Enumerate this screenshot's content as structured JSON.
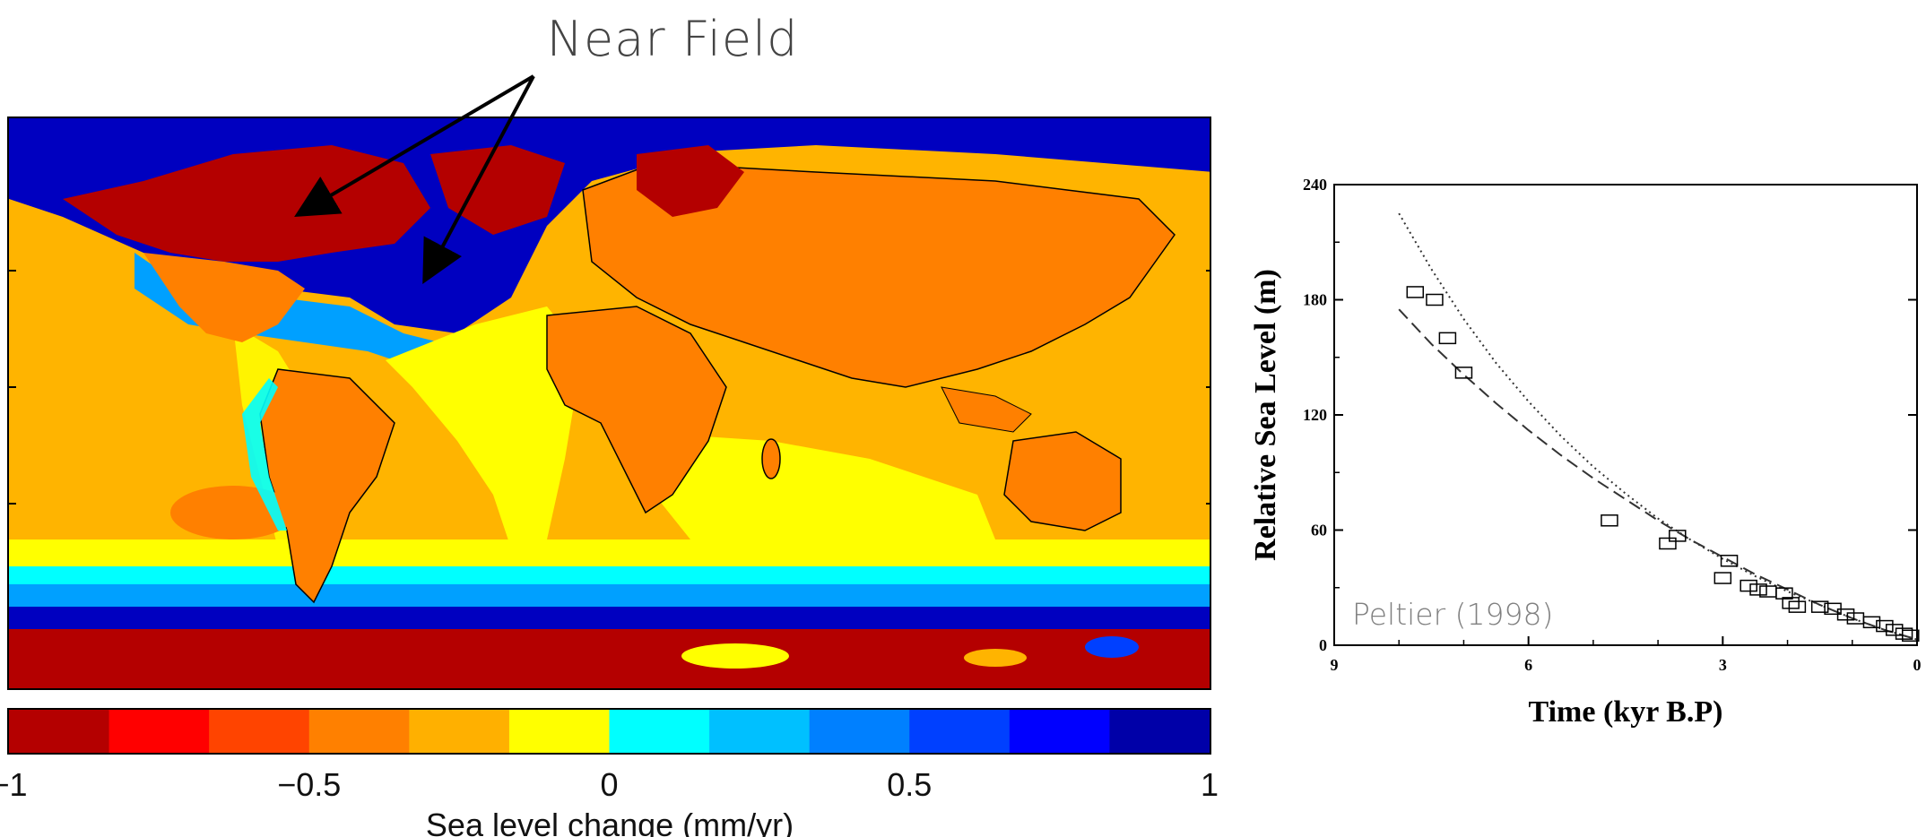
{
  "annotation": {
    "near_field": "Near Field"
  },
  "colorbar": {
    "range": [
      -1,
      1
    ],
    "ticks": [
      {
        "value": -1,
        "label": "−1"
      },
      {
        "value": -0.5,
        "label": "−0.5"
      },
      {
        "value": 0,
        "label": "0"
      },
      {
        "value": 0.5,
        "label": "0.5"
      },
      {
        "value": 1,
        "label": "1"
      }
    ],
    "label": "Sea level change (mm/yr)",
    "colors": [
      "#b40000",
      "#ff0000",
      "#ff4400",
      "#ff8000",
      "#ffb000",
      "#ffff00",
      "#00ffff",
      "#00c0ff",
      "#0080ff",
      "#0040ff",
      "#0000ff",
      "#0000a8"
    ]
  },
  "map": {
    "ocean_color": "#ffb400",
    "ice_color": "#b40000",
    "coast_color": "#0040ff"
  },
  "chart_data": {
    "type": "scatter",
    "ylabel": "Relative Sea Level (m)",
    "xlabel": "Time (kyr B.P)",
    "xlim": [
      9,
      0
    ],
    "ylim": [
      0,
      240
    ],
    "xticks": [
      9,
      6,
      3,
      0
    ],
    "yticks": [
      0,
      60,
      120,
      180,
      240
    ],
    "annotation": "Peltier (1998)",
    "series": [
      {
        "style": "dotted",
        "points": [
          [
            8.0,
            225
          ],
          [
            7.5,
            196
          ],
          [
            7.0,
            170
          ],
          [
            6.5,
            147
          ],
          [
            6.0,
            127
          ],
          [
            5.5,
            109
          ],
          [
            5.0,
            93
          ],
          [
            4.5,
            79
          ],
          [
            4.0,
            66
          ],
          [
            3.5,
            55
          ],
          [
            3.0,
            45
          ],
          [
            2.5,
            36
          ],
          [
            2.0,
            28
          ],
          [
            1.5,
            21
          ],
          [
            1.0,
            14
          ],
          [
            0.5,
            8
          ],
          [
            0.0,
            3
          ]
        ]
      },
      {
        "style": "dashed",
        "points": [
          [
            8.0,
            175
          ],
          [
            7.5,
            157
          ],
          [
            7.0,
            141
          ],
          [
            6.5,
            126
          ],
          [
            6.0,
            112
          ],
          [
            5.5,
            99
          ],
          [
            5.0,
            87
          ],
          [
            4.5,
            76
          ],
          [
            4.0,
            65
          ],
          [
            3.5,
            55
          ],
          [
            3.0,
            46
          ],
          [
            2.5,
            37
          ],
          [
            2.0,
            29
          ],
          [
            1.5,
            21
          ],
          [
            1.0,
            14
          ],
          [
            0.5,
            8
          ],
          [
            0.0,
            3
          ]
        ]
      }
    ],
    "observations": [
      {
        "x": 7.75,
        "y": 184
      },
      {
        "x": 7.45,
        "y": 180
      },
      {
        "x": 7.25,
        "y": 160
      },
      {
        "x": 7.0,
        "y": 142
      },
      {
        "x": 4.75,
        "y": 65
      },
      {
        "x": 3.85,
        "y": 53
      },
      {
        "x": 3.7,
        "y": 57
      },
      {
        "x": 3.0,
        "y": 35
      },
      {
        "x": 2.9,
        "y": 44
      },
      {
        "x": 2.6,
        "y": 31
      },
      {
        "x": 2.45,
        "y": 29
      },
      {
        "x": 2.3,
        "y": 28
      },
      {
        "x": 2.05,
        "y": 27
      },
      {
        "x": 1.95,
        "y": 22
      },
      {
        "x": 1.85,
        "y": 20
      },
      {
        "x": 1.5,
        "y": 20
      },
      {
        "x": 1.3,
        "y": 19
      },
      {
        "x": 1.1,
        "y": 16
      },
      {
        "x": 0.95,
        "y": 14
      },
      {
        "x": 0.7,
        "y": 12
      },
      {
        "x": 0.5,
        "y": 10
      },
      {
        "x": 0.35,
        "y": 8
      },
      {
        "x": 0.2,
        "y": 6
      },
      {
        "x": 0.1,
        "y": 5
      }
    ]
  }
}
